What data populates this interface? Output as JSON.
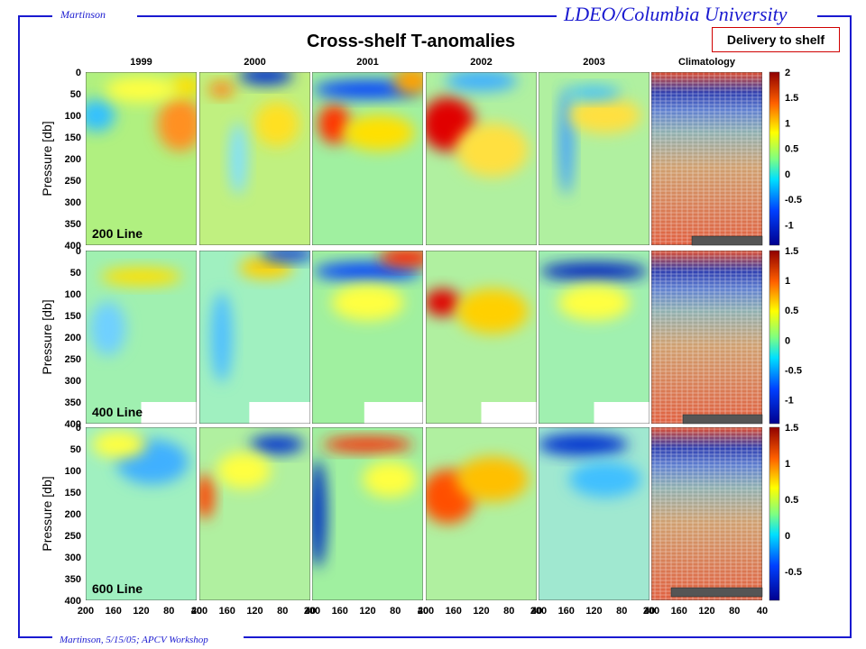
{
  "header": {
    "author": "Martinson",
    "institution": "LDEO/Columbia University",
    "footer": "Martinson, 5/15/05; APCV Workshop"
  },
  "callout": "Delivery to shelf",
  "colors": {
    "frame": "#1a1ad0",
    "callout_border": "#d00000"
  },
  "chart_data": {
    "type": "heatmap",
    "title": "Cross-shelf T-anomalies",
    "columns": [
      "1999",
      "2000",
      "2001",
      "2002",
      "2003",
      "Climatology"
    ],
    "rows": [
      "200 Line",
      "400 Line",
      "600 Line"
    ],
    "ylabel": "Pressure [db]",
    "yticks": [
      "0",
      "50",
      "100",
      "150",
      "200",
      "250",
      "300",
      "350",
      "400"
    ],
    "xticks": [
      "200",
      "160",
      "120",
      "80",
      "40"
    ],
    "ylim": [
      400,
      0
    ],
    "xlim": [
      200,
      40
    ],
    "colorbars": [
      [
        "2",
        "1.5",
        "1",
        "0.5",
        "0",
        "-0.5",
        "-1"
      ],
      [
        "1.5",
        "1",
        "0.5",
        "0",
        "-0.5",
        "-1"
      ],
      [
        "1.5",
        "1",
        "0.5",
        "0",
        "-0.5"
      ]
    ]
  }
}
